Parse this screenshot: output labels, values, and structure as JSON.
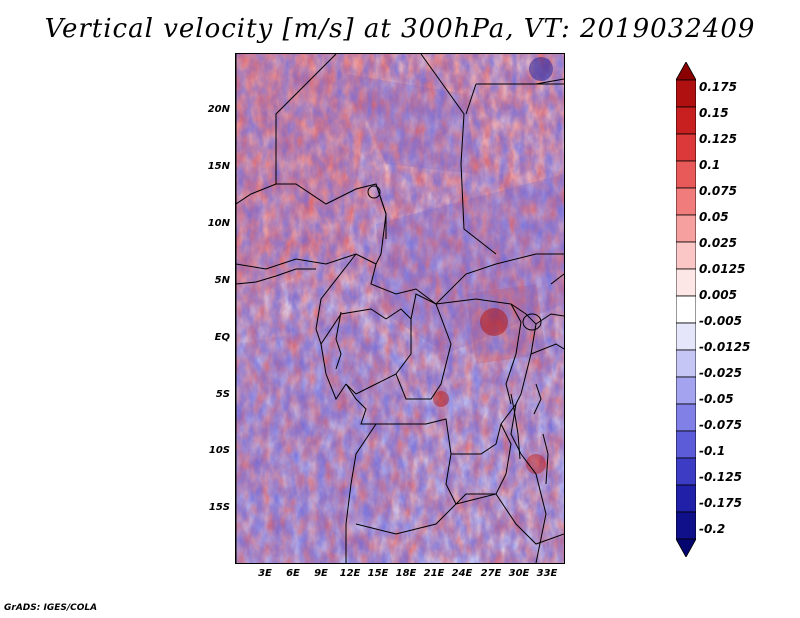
{
  "title": "Vertical velocity [m/s] at 300hPa, VT: 2019032409",
  "credit": "GrADS: IGES/COLA",
  "lat_labels": [
    "20N",
    "15N",
    "10N",
    "5N",
    "EQ",
    "5S",
    "10S",
    "15S"
  ],
  "lon_labels": [
    "3E",
    "6E",
    "9E",
    "12E",
    "15E",
    "18E",
    "21E",
    "24E",
    "27E",
    "30E",
    "33E"
  ],
  "colorbar": {
    "labels": [
      "0.175",
      "0.15",
      "0.125",
      "0.1",
      "0.075",
      "0.05",
      "0.025",
      "0.0125",
      "0.005",
      "-0.005",
      "-0.0125",
      "-0.025",
      "-0.05",
      "-0.075",
      "-0.1",
      "-0.125",
      "-0.175",
      "-0.2"
    ],
    "colors": [
      "#8b0000",
      "#b01010",
      "#c82020",
      "#dc3a3a",
      "#e85a5a",
      "#f07c7c",
      "#f6a0a0",
      "#fbc6c6",
      "#fde6e6",
      "#ffffff",
      "#e6e6fb",
      "#c6c6f6",
      "#a3a3ef",
      "#8080e6",
      "#5c5cd8",
      "#3c3cc4",
      "#2020a8",
      "#10108a",
      "#050570"
    ]
  },
  "colors": {
    "positive": "#e06060",
    "negative": "#6666dd",
    "neutral": "#f6f0f4",
    "borders": "#000000"
  }
}
